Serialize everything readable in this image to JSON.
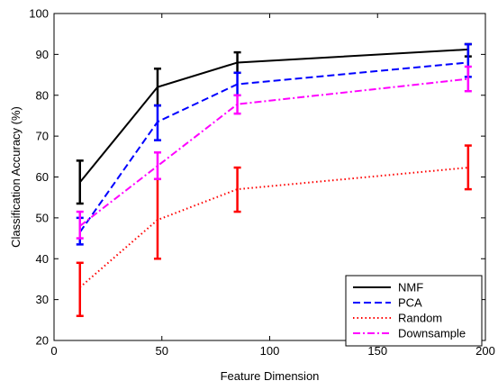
{
  "chart_data": {
    "type": "line",
    "xlabel": "Feature Dimension",
    "ylabel": "Classification Accuracy (%)",
    "xlim": [
      0,
      200
    ],
    "ylim": [
      20,
      100
    ],
    "xticks": [
      0,
      50,
      100,
      150,
      200
    ],
    "yticks": [
      20,
      30,
      40,
      50,
      60,
      70,
      80,
      90,
      100
    ],
    "grid": false,
    "legend_position": "bottom-right",
    "series": [
      {
        "name": "NMF",
        "color": "#000000",
        "dash": "solid",
        "x": [
          12,
          48,
          85,
          192
        ],
        "y": [
          58.7,
          82,
          88,
          91.2
        ],
        "err_low": [
          53.5,
          77.5,
          85.5,
          89.5
        ],
        "err_high": [
          64,
          86.5,
          90.5,
          92.5
        ]
      },
      {
        "name": "PCA",
        "color": "#0000ff",
        "dash": "dashed",
        "x": [
          12,
          48,
          85,
          192
        ],
        "y": [
          46.5,
          73.5,
          82.7,
          88
        ],
        "err_low": [
          43.5,
          69,
          80,
          84.5
        ],
        "err_high": [
          50,
          77.5,
          85.5,
          92.5
        ]
      },
      {
        "name": "Random",
        "color": "#ff0000",
        "dash": "dotted",
        "x": [
          12,
          48,
          85,
          192
        ],
        "y": [
          33,
          49.5,
          57,
          62.3
        ],
        "err_low": [
          26,
          40,
          51.5,
          57
        ],
        "err_high": [
          39,
          59.5,
          62.3,
          67.7
        ]
      },
      {
        "name": "Downsample",
        "color": "#ff00ff",
        "dash": "dashdot",
        "x": [
          12,
          48,
          85,
          192
        ],
        "y": [
          48,
          62.7,
          77.8,
          84
        ],
        "err_low": [
          45,
          59.5,
          75.5,
          81
        ],
        "err_high": [
          51.5,
          66,
          80,
          87
        ]
      }
    ]
  }
}
